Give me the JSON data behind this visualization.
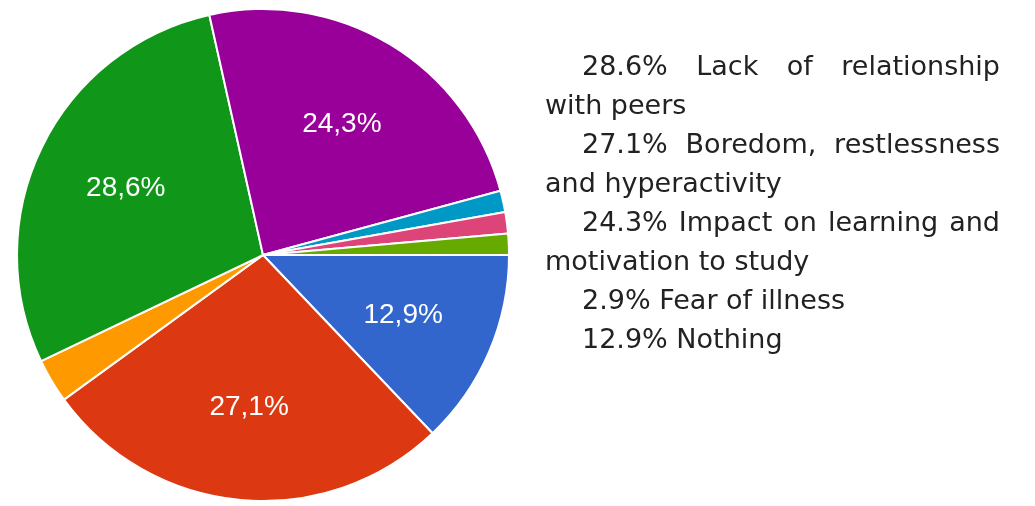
{
  "chart_data": {
    "type": "pie",
    "categories": [
      null,
      null,
      null,
      null,
      null,
      null,
      null,
      null
    ],
    "values": [
      12.9,
      27.1,
      2.9,
      28.6,
      24.3,
      1.4,
      1.4,
      1.4
    ],
    "colors": [
      "#3366cc",
      "#dc3912",
      "#ff9900",
      "#109618",
      "#990099",
      "#0099c6",
      "#dd4477",
      "#66aa00"
    ],
    "value_labels": [
      "12,9%",
      "27,1%",
      null,
      "28,6%",
      "24,3%",
      null,
      null,
      null
    ],
    "legend": false,
    "annotations": [
      "28.6% Lack of relationship with peers",
      "27.1% Boredom, restlessness and hyperactivity",
      "24.3% Impact on learning and motivation to study",
      "2.9% Fear of illness",
      "12.9% Nothing"
    ]
  }
}
